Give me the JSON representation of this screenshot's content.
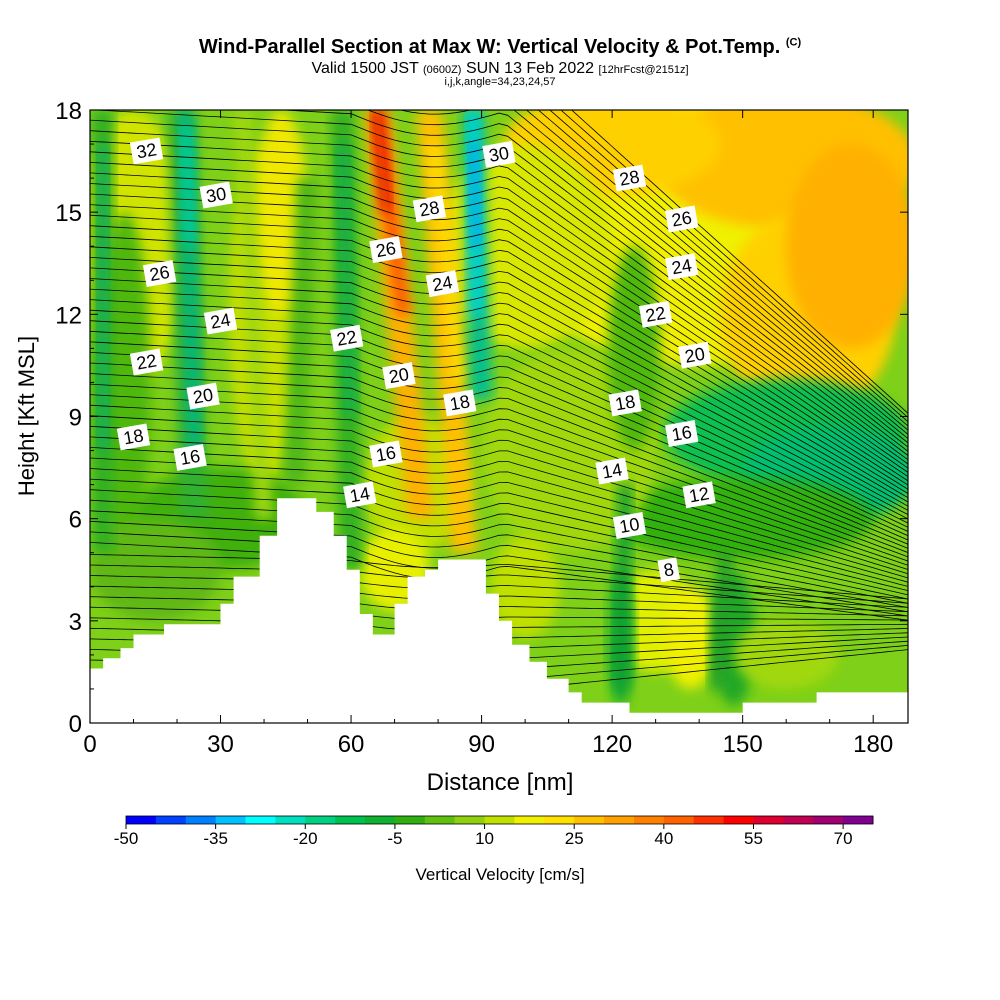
{
  "header": {
    "title": "Wind-Parallel Section at Max W: Vertical Velocity & Pot.Temp.",
    "copyright": "(C)",
    "valid_prefix": "Valid 1500 JST",
    "valid_z": "(0600Z)",
    "valid_date": "SUN 13 Feb 2022",
    "forecast": "[12hrFcst@2151z]",
    "indices": "i,j,k,angle=34,23,24,57"
  },
  "chart_data": {
    "type": "heatmap",
    "xlabel": "Distance [nm]",
    "ylabel": "Height [Kft MSL]",
    "xlim": [
      0,
      188
    ],
    "ylim": [
      0,
      18
    ],
    "x_ticks": [
      "0",
      "30",
      "60",
      "90",
      "120",
      "150",
      "180"
    ],
    "y_ticks": [
      "0",
      "3",
      "6",
      "9",
      "12",
      "15",
      "18"
    ],
    "terrain": [
      [
        0,
        1.6
      ],
      [
        3,
        1.6
      ],
      [
        3,
        1.9
      ],
      [
        7,
        1.9
      ],
      [
        7,
        2.2
      ],
      [
        10,
        2.2
      ],
      [
        10,
        2.6
      ],
      [
        17,
        2.6
      ],
      [
        17,
        2.9
      ],
      [
        30,
        2.9
      ],
      [
        30,
        3.5
      ],
      [
        33,
        3.5
      ],
      [
        33,
        4.3
      ],
      [
        39,
        4.3
      ],
      [
        39,
        5.5
      ],
      [
        43,
        5.5
      ],
      [
        43,
        6.6
      ],
      [
        52,
        6.6
      ],
      [
        52,
        6.2
      ],
      [
        56,
        6.2
      ],
      [
        56,
        5.5
      ],
      [
        59,
        5.5
      ],
      [
        59,
        4.5
      ],
      [
        62,
        4.5
      ],
      [
        62,
        3.2
      ],
      [
        65,
        3.2
      ],
      [
        65,
        2.6
      ],
      [
        70,
        2.6
      ],
      [
        70,
        3.5
      ],
      [
        73,
        3.5
      ],
      [
        73,
        4.3
      ],
      [
        77,
        4.3
      ],
      [
        77,
        4.5
      ],
      [
        80,
        4.5
      ],
      [
        80,
        4.8
      ],
      [
        91,
        4.8
      ],
      [
        91,
        3.8
      ],
      [
        94,
        3.8
      ],
      [
        94,
        3.0
      ],
      [
        97,
        3.0
      ],
      [
        97,
        2.3
      ],
      [
        101,
        2.3
      ],
      [
        101,
        1.8
      ],
      [
        105,
        1.8
      ],
      [
        105,
        1.3
      ],
      [
        110,
        1.3
      ],
      [
        110,
        0.9
      ],
      [
        113,
        0.9
      ],
      [
        113,
        0.6
      ],
      [
        124,
        0.6
      ],
      [
        124,
        0.3
      ],
      [
        150,
        0.3
      ],
      [
        150,
        0.6
      ],
      [
        167,
        0.6
      ],
      [
        167,
        0.9
      ],
      [
        188,
        0.9
      ]
    ],
    "theta_labels": [
      {
        "text": "32",
        "x": 13,
        "y": 16.8
      },
      {
        "text": "30",
        "x": 29,
        "y": 15.5
      },
      {
        "text": "30",
        "x": 94,
        "y": 16.7
      },
      {
        "text": "28",
        "x": 78,
        "y": 15.1
      },
      {
        "text": "28",
        "x": 124,
        "y": 16.0
      },
      {
        "text": "26",
        "x": 16,
        "y": 13.2
      },
      {
        "text": "26",
        "x": 68,
        "y": 13.9
      },
      {
        "text": "26",
        "x": 136,
        "y": 14.8
      },
      {
        "text": "24",
        "x": 30,
        "y": 11.8
      },
      {
        "text": "24",
        "x": 81,
        "y": 12.9
      },
      {
        "text": "24",
        "x": 136,
        "y": 13.4
      },
      {
        "text": "22",
        "x": 13,
        "y": 10.6
      },
      {
        "text": "22",
        "x": 59,
        "y": 11.3
      },
      {
        "text": "22",
        "x": 130,
        "y": 12.0
      },
      {
        "text": "20",
        "x": 26,
        "y": 9.6
      },
      {
        "text": "20",
        "x": 71,
        "y": 10.2
      },
      {
        "text": "20",
        "x": 139,
        "y": 10.8
      },
      {
        "text": "18",
        "x": 10,
        "y": 8.4
      },
      {
        "text": "18",
        "x": 85,
        "y": 9.4
      },
      {
        "text": "18",
        "x": 123,
        "y": 9.4
      },
      {
        "text": "16",
        "x": 23,
        "y": 7.8
      },
      {
        "text": "16",
        "x": 68,
        "y": 7.9
      },
      {
        "text": "16",
        "x": 136,
        "y": 8.5
      },
      {
        "text": "14",
        "x": 62,
        "y": 6.7
      },
      {
        "text": "14",
        "x": 120,
        "y": 7.4
      },
      {
        "text": "12",
        "x": 140,
        "y": 6.7
      },
      {
        "text": "10",
        "x": 124,
        "y": 5.8
      },
      {
        "text": "8",
        "x": 133,
        "y": 4.5
      }
    ],
    "colorbar": {
      "label": "Vertical Velocity [cm/s]",
      "tick_labels": [
        "-50",
        "-35",
        "-20",
        "-5",
        "10",
        "25",
        "40",
        "55",
        "70"
      ],
      "colors": [
        "#0000ff",
        "#0040ff",
        "#0080ff",
        "#00c0ff",
        "#00ffff",
        "#00e0c0",
        "#00d080",
        "#00c050",
        "#10b030",
        "#30b010",
        "#60c010",
        "#90d010",
        "#c0e000",
        "#f0f000",
        "#ffe000",
        "#ffc000",
        "#ffa000",
        "#ff8000",
        "#ff6000",
        "#ff3000",
        "#ff0000",
        "#e00030",
        "#c00050",
        "#a00070",
        "#800090"
      ]
    }
  }
}
